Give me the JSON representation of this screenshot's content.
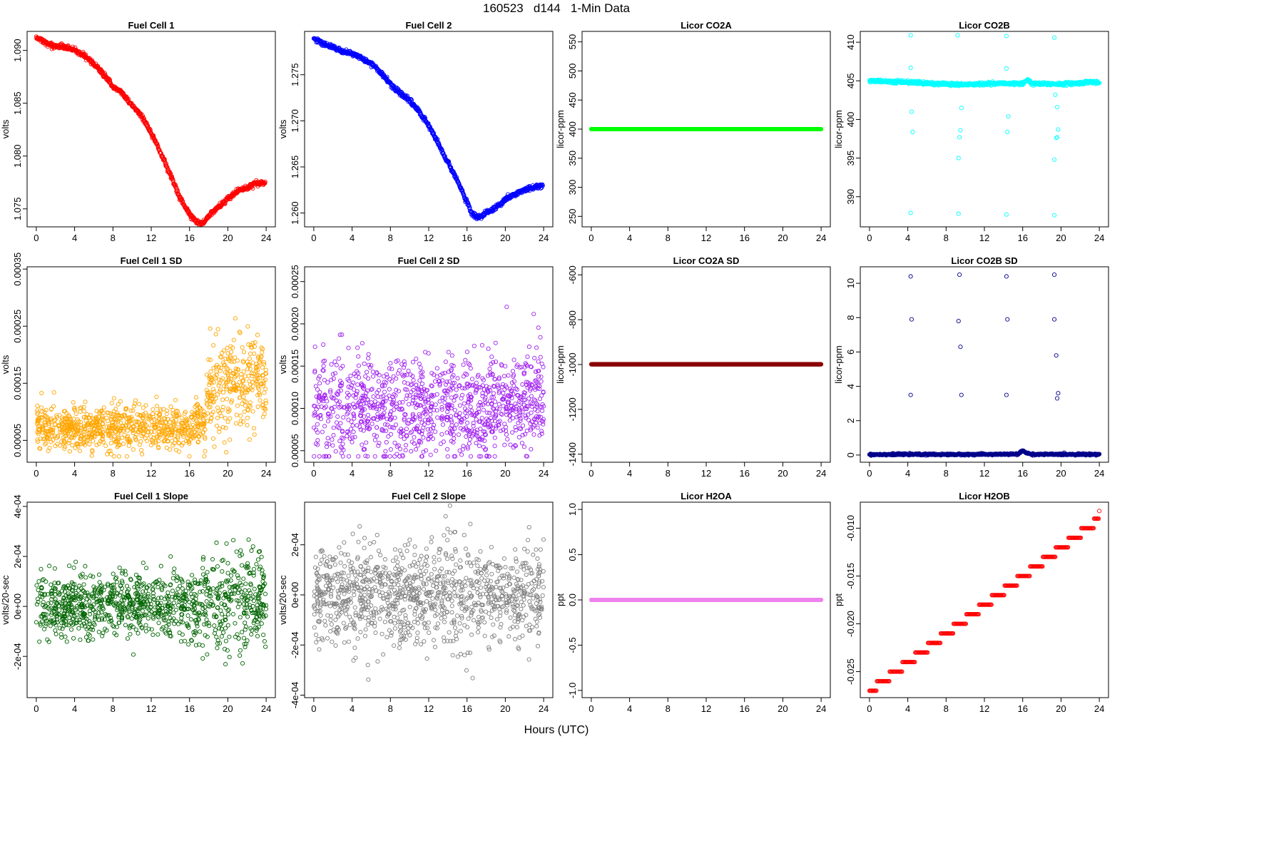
{
  "suptitle": "160523   d144   1-Min Data",
  "x_axis_title": "Hours (UTC)",
  "chart_data": [
    {
      "id": "fc1",
      "type": "scatter",
      "title": "Fuel Cell 1",
      "ylabel": "volts",
      "color": "#ff0000",
      "xlim": [
        -0.96,
        24.96
      ],
      "ylim": [
        1.0733,
        1.0918
      ],
      "yticks": [
        1.075,
        1.08,
        1.085,
        1.09
      ],
      "ytick_labels": [
        "1.075",
        "1.080",
        "1.085",
        "1.090"
      ],
      "xticks": [
        0,
        4,
        8,
        12,
        16,
        20,
        24
      ],
      "xtick_labels": [
        "0",
        "4",
        "8",
        "12",
        "16",
        "20",
        "24"
      ],
      "series": [
        {
          "x": [
            0,
            1,
            2,
            3,
            4,
            5,
            6,
            7,
            8,
            9,
            10,
            11,
            12,
            13,
            14,
            15,
            16,
            16.5,
            17,
            17.5,
            18,
            19,
            20,
            21,
            22,
            23,
            23.9
          ],
          "y": [
            1.0912,
            1.0907,
            1.0904,
            1.0903,
            1.09,
            1.0895,
            1.0887,
            1.0878,
            1.0866,
            1.0859,
            1.0848,
            1.0838,
            1.0822,
            1.0803,
            1.0782,
            1.076,
            1.0745,
            1.074,
            1.0736,
            1.0737,
            1.0743,
            1.0752,
            1.076,
            1.0767,
            1.077,
            1.0775,
            1.0775
          ]
        }
      ]
    },
    {
      "id": "fc2",
      "type": "scatter",
      "title": "Fuel Cell 2",
      "ylabel": "volts",
      "color": "#0000ff",
      "xlim": [
        -0.96,
        24.96
      ],
      "ylim": [
        1.2585,
        1.2797
      ],
      "yticks": [
        1.26,
        1.265,
        1.27,
        1.275
      ],
      "ytick_labels": [
        "1.260",
        "1.265",
        "1.270",
        "1.275"
      ],
      "xticks": [
        0,
        4,
        8,
        12,
        16,
        20,
        24
      ],
      "xtick_labels": [
        "0",
        "4",
        "8",
        "12",
        "16",
        "20",
        "24"
      ],
      "series": [
        {
          "x": [
            0,
            1,
            2,
            3,
            4,
            5,
            6,
            7,
            8,
            9,
            10,
            11,
            12,
            13,
            14,
            15,
            16,
            16.5,
            17,
            17.5,
            18,
            19,
            20,
            21,
            22,
            23,
            23.9
          ],
          "y": [
            1.279,
            1.2783,
            1.278,
            1.2775,
            1.2773,
            1.2768,
            1.2762,
            1.2752,
            1.274,
            1.273,
            1.2722,
            1.271,
            1.2695,
            1.2675,
            1.2655,
            1.2635,
            1.2612,
            1.26,
            1.2595,
            1.2597,
            1.26,
            1.2605,
            1.2615,
            1.262,
            1.2625,
            1.2628,
            1.263
          ]
        }
      ]
    },
    {
      "id": "co2a",
      "type": "scatter",
      "title": "Licor CO2A",
      "ylabel": "licor-ppm",
      "color": "#00ff00",
      "xlim": [
        -0.96,
        24.96
      ],
      "ylim": [
        232,
        568
      ],
      "yticks": [
        250,
        300,
        350,
        400,
        450,
        500,
        550
      ],
      "ytick_labels": [
        "250",
        "300",
        "350",
        "400",
        "450",
        "500",
        "550"
      ],
      "xticks": [
        0,
        4,
        8,
        12,
        16,
        20,
        24
      ],
      "xtick_labels": [
        "0",
        "4",
        "8",
        "12",
        "16",
        "20",
        "24"
      ],
      "series": [
        {
          "x": [
            0,
            24
          ],
          "y": [
            400,
            400
          ]
        }
      ]
    },
    {
      "id": "co2b",
      "type": "scatter",
      "title": "Licor CO2B",
      "ylabel": "licor-ppm",
      "color": "#00ffff",
      "xlim": [
        -0.96,
        24.96
      ],
      "ylim": [
        386.1,
        411.4
      ],
      "yticks": [
        390,
        395,
        400,
        405,
        410
      ],
      "ytick_labels": [
        "390",
        "395",
        "400",
        "405",
        "410"
      ],
      "xticks": [
        0,
        4,
        8,
        12,
        16,
        20,
        24
      ],
      "xtick_labels": [
        "0",
        "4",
        "8",
        "12",
        "16",
        "20",
        "24"
      ],
      "series": [
        {
          "x": [
            0,
            2,
            4,
            6,
            8,
            10,
            12,
            14,
            16,
            16.5,
            17,
            18,
            20,
            22,
            23,
            24
          ],
          "y": [
            405.0,
            404.9,
            404.8,
            404.7,
            404.6,
            404.5,
            404.6,
            404.7,
            404.6,
            405.2,
            404.6,
            404.6,
            404.6,
            404.7,
            404.9,
            404.7
          ]
        }
      ],
      "outliers": {
        "x": [
          4.3,
          4.3,
          4.4,
          4.5,
          4.3,
          9.2,
          9.3,
          9.5,
          9.6,
          9.4,
          9.3,
          14.3,
          14.3,
          14.5,
          14.4,
          14.3,
          19.3,
          19.3,
          19.6,
          19.7,
          19.5,
          19.4,
          19.6,
          19.3
        ],
        "y": [
          410.9,
          406.7,
          401.0,
          398.4,
          387.9,
          410.9,
          395.0,
          398.6,
          401.5,
          397.7,
          387.8,
          410.8,
          406.6,
          400.4,
          398.4,
          387.7,
          410.6,
          394.8,
          401.6,
          398.7,
          397.6,
          403.2,
          397.7,
          387.6
        ]
      }
    },
    {
      "id": "fc1sd",
      "type": "scatter",
      "title": "Fuel Cell 1 SD",
      "ylabel": "volts",
      "color": "#ffa500",
      "xlim": [
        -0.96,
        24.96
      ],
      "ylim": [
        1.17e-05,
        0.000354
      ],
      "yticks": [
        5e-05,
        0.00015,
        0.00025,
        0.00035
      ],
      "ytick_labels": [
        "0.00005",
        "0.00015",
        "0.00025",
        "0.00035"
      ],
      "xticks": [
        0,
        4,
        8,
        12,
        16,
        20,
        24
      ],
      "xtick_labels": [
        "0",
        "4",
        "8",
        "12",
        "16",
        "20",
        "24"
      ],
      "series": [
        {
          "x": [
            0,
            4,
            8,
            12,
            16,
            17.5,
            18,
            20,
            22,
            24
          ],
          "y": [
            7.5e-05,
            7e-05,
            7.2e-05,
            7.8e-05,
            6.8e-05,
            9e-05,
            0.00014,
            0.00015,
            0.00015,
            0.00016
          ]
        }
      ]
    },
    {
      "id": "fc2sd",
      "type": "scatter",
      "title": "Fuel Cell 2 SD",
      "ylabel": "volts",
      "color": "#a020f0",
      "xlim": [
        -0.96,
        24.96
      ],
      "ylim": [
        3.63e-05,
        0.0002675
      ],
      "yticks": [
        5e-05,
        0.0001,
        0.00015,
        0.0002,
        0.00025
      ],
      "ytick_labels": [
        "0.00005",
        "0.00010",
        "0.00015",
        "0.00020",
        "0.00025"
      ],
      "xticks": [
        0,
        4,
        8,
        12,
        16,
        20,
        24
      ],
      "xtick_labels": [
        "0",
        "4",
        "8",
        "12",
        "16",
        "20",
        "24"
      ],
      "series": [
        {
          "x": [
            0,
            6,
            12,
            18,
            24
          ],
          "y": [
            0.0001,
            0.0001,
            0.000102,
            0.0001,
            0.000115
          ]
        }
      ]
    },
    {
      "id": "co2asd",
      "type": "scatter",
      "title": "Licor CO2A SD",
      "ylabel": "licor-ppm",
      "color": "#8b0000",
      "xlim": [
        -0.96,
        24.96
      ],
      "ylim": [
        -1436,
        -564
      ],
      "yticks": [
        -1400,
        -1200,
        -1000,
        -800,
        -600
      ],
      "ytick_labels": [
        "-1400",
        "-1200",
        "-1000",
        "-800",
        "-600"
      ],
      "xticks": [
        0,
        4,
        8,
        12,
        16,
        20,
        24
      ],
      "xtick_labels": [
        "0",
        "4",
        "8",
        "12",
        "16",
        "20",
        "24"
      ],
      "series": [
        {
          "x": [
            0,
            24
          ],
          "y": [
            -999,
            -999
          ]
        }
      ]
    },
    {
      "id": "co2bsd",
      "type": "scatter",
      "title": "Licor CO2B SD",
      "ylabel": "licor-ppm",
      "color": "#00008b",
      "xlim": [
        -0.96,
        24.96
      ],
      "ylim": [
        -0.42,
        10.96
      ],
      "yticks": [
        0,
        2,
        4,
        6,
        8,
        10
      ],
      "ytick_labels": [
        "0",
        "2",
        "4",
        "6",
        "8",
        "10"
      ],
      "xticks": [
        0,
        4,
        8,
        12,
        16,
        20,
        24
      ],
      "xtick_labels": [
        "0",
        "4",
        "8",
        "12",
        "16",
        "20",
        "24"
      ],
      "series": [
        {
          "x": [
            0,
            4,
            8,
            12,
            15.5,
            16,
            16.5,
            17,
            20,
            24
          ],
          "y": [
            0.03,
            0.04,
            0.03,
            0.04,
            0.05,
            0.25,
            0.1,
            0.04,
            0.04,
            0.04
          ]
        }
      ],
      "outliers": {
        "x": [
          4.3,
          4.4,
          4.3,
          9.4,
          9.3,
          9.5,
          9.6,
          14.3,
          14.4,
          14.3,
          19.3,
          19.3,
          19.5,
          19.7,
          19.6
        ],
        "y": [
          10.4,
          7.9,
          3.5,
          10.5,
          7.8,
          6.3,
          3.5,
          10.4,
          7.9,
          3.5,
          10.5,
          7.9,
          5.8,
          3.6,
          3.3
        ]
      }
    },
    {
      "id": "fc1slope",
      "type": "scatter",
      "title": "Fuel Cell 1 Slope",
      "ylabel": "volts/20-sec",
      "color": "#006400",
      "xlim": [
        -0.96,
        24.96
      ],
      "ylim": [
        -0.000365,
        0.000417
      ],
      "yticks": [
        -0.0002,
        0,
        0.0002,
        0.0004
      ],
      "ytick_labels": [
        "-2e-04",
        "0e+00",
        "2e-04",
        "4e-04"
      ],
      "xticks": [
        0,
        4,
        8,
        12,
        16,
        20,
        24
      ],
      "xtick_labels": [
        "0",
        "4",
        "8",
        "12",
        "16",
        "20",
        "24"
      ],
      "series": [
        {
          "x": [
            0,
            4,
            8,
            12,
            16,
            20,
            24
          ],
          "y": [
            1e-05,
            5e-06,
            0.0,
            5e-06,
            0.0,
            1e-05,
            2e-05
          ]
        }
      ]
    },
    {
      "id": "fc2slope",
      "type": "scatter",
      "title": "Fuel Cell 2 Slope",
      "ylabel": "volts/20-sec",
      "color": "#808080",
      "xlim": [
        -0.96,
        24.96
      ],
      "ylim": [
        -0.00041,
        0.00037
      ],
      "yticks": [
        -0.0004,
        -0.0002,
        0,
        0.0002
      ],
      "ytick_labels": [
        "-4e-04",
        "-2e-04",
        "0e+00",
        "2e-04"
      ],
      "xticks": [
        0,
        4,
        8,
        12,
        16,
        20,
        24
      ],
      "xtick_labels": [
        "0",
        "4",
        "8",
        "12",
        "16",
        "20",
        "24"
      ],
      "series": [
        {
          "x": [
            0,
            6,
            12,
            18,
            24
          ],
          "y": [
            0.0,
            0.0,
            0.0,
            0.0,
            1e-05
          ]
        }
      ]
    },
    {
      "id": "h2oa",
      "type": "scatter",
      "title": "Licor H2OA",
      "ylabel": "ppt",
      "color": "#ee82ee",
      "xlim": [
        -0.96,
        24.96
      ],
      "ylim": [
        -1.08,
        1.08
      ],
      "yticks": [
        -1.0,
        -0.5,
        0.0,
        0.5,
        1.0
      ],
      "ytick_labels": [
        "-1.0",
        "-0.5",
        "0.0",
        "0.5",
        "1.0"
      ],
      "xticks": [
        0,
        4,
        8,
        12,
        16,
        20,
        24
      ],
      "xtick_labels": [
        "0",
        "4",
        "8",
        "12",
        "16",
        "20",
        "24"
      ],
      "series": [
        {
          "x": [
            0,
            24
          ],
          "y": [
            0,
            0
          ]
        }
      ]
    },
    {
      "id": "h2ob",
      "type": "scatter",
      "title": "Licor H2OB",
      "ylabel": "ppt",
      "color": "#ff0000",
      "xlim": [
        -0.96,
        24.96
      ],
      "ylim": [
        -0.02772,
        -0.00728
      ],
      "yticks": [
        -0.025,
        -0.02,
        -0.015,
        -0.01
      ],
      "ytick_labels": [
        "-0.025",
        "-0.020",
        "-0.015",
        "-0.010"
      ],
      "xticks": [
        0,
        4,
        8,
        12,
        16,
        20,
        24
      ],
      "xtick_labels": [
        "0",
        "4",
        "8",
        "12",
        "16",
        "20",
        "24"
      ],
      "series": [
        {
          "x": [
            0,
            24
          ],
          "y": [
            -0.027,
            -0.009
          ]
        }
      ]
    }
  ]
}
